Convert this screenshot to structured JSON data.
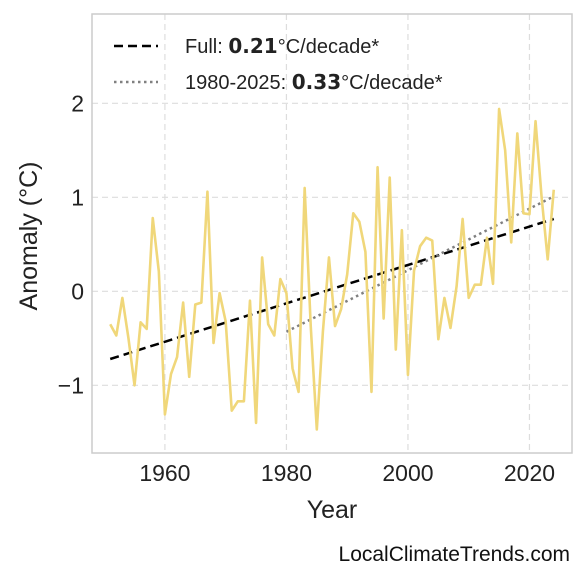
{
  "chart_data": {
    "type": "line",
    "title": "",
    "xlabel": "Year",
    "ylabel": "Anomaly (°C)",
    "xlim": [
      1948,
      2027
    ],
    "ylim": [
      -1.72,
      2.95
    ],
    "xticks": [
      1960,
      1980,
      2000,
      2020
    ],
    "yticks": [
      -1,
      0,
      1,
      2
    ],
    "ytick_labels": [
      "−1",
      "0",
      "1",
      "2"
    ],
    "grid": true,
    "legend_placement": "top-left",
    "colors": {
      "series": "#f0d77a",
      "trend_full": "#000000",
      "trend_recent": "#808080",
      "grid": "#dddddd",
      "frame": "#cccccc"
    },
    "series": [
      {
        "x": [
          1951,
          1952,
          1953,
          1954,
          1955,
          1956,
          1957,
          1958,
          1959,
          1960,
          1961,
          1962,
          1963,
          1964,
          1965,
          1966,
          1967,
          1968,
          1969,
          1970,
          1971,
          1972,
          1973,
          1974,
          1975,
          1976,
          1977,
          1978,
          1979,
          1980,
          1981,
          1982,
          1983,
          1984,
          1985,
          1986,
          1987,
          1988,
          1989,
          1990,
          1991,
          1992,
          1993,
          1994,
          1995,
          1996,
          1997,
          1998,
          1999,
          2000,
          2001,
          2002,
          2003,
          2004,
          2005,
          2006,
          2007,
          2008,
          2009,
          2010,
          2011,
          2012,
          2013,
          2014,
          2015,
          2016,
          2017,
          2018,
          2019,
          2020,
          2021,
          2022,
          2023,
          2024
        ],
        "values": [
          -0.35,
          -0.47,
          -0.07,
          -0.5,
          -1.0,
          -0.33,
          -0.4,
          0.78,
          0.21,
          -1.31,
          -0.88,
          -0.7,
          -0.12,
          -0.91,
          -0.14,
          -0.12,
          1.06,
          -0.55,
          -0.02,
          -0.32,
          -1.27,
          -1.17,
          -1.17,
          -0.1,
          -1.4,
          0.36,
          -0.35,
          -0.47,
          0.13,
          -0.02,
          -0.82,
          -1.07,
          1.1,
          -0.37,
          -1.47,
          -0.43,
          0.36,
          -0.37,
          -0.19,
          0.18,
          0.83,
          0.74,
          0.42,
          -1.07,
          1.32,
          -0.29,
          1.21,
          -0.62,
          0.65,
          -0.89,
          0.22,
          0.48,
          0.57,
          0.54,
          -0.51,
          -0.07,
          -0.39,
          0.05,
          0.77,
          -0.07,
          0.07,
          0.07,
          0.57,
          0.08,
          1.94,
          1.5,
          0.52,
          1.68,
          0.83,
          0.82,
          1.81,
          1.0,
          0.34,
          1.08
        ]
      }
    ],
    "trend_lines": [
      {
        "x": [
          1951,
          2024
        ],
        "y": [
          -0.72,
          0.77
        ],
        "style": "dashed"
      },
      {
        "x": [
          1980,
          2024
        ],
        "y": [
          -0.43,
          1.01
        ],
        "style": "dotted"
      }
    ]
  },
  "legend": {
    "full_prefix": "Full: ",
    "full_value": "0.21",
    "full_suffix": "°C/decade*",
    "recent_prefix": "1980-2025: ",
    "recent_value": "0.33",
    "recent_suffix": "°C/decade*"
  },
  "watermark": "LocalClimateTrends.com"
}
